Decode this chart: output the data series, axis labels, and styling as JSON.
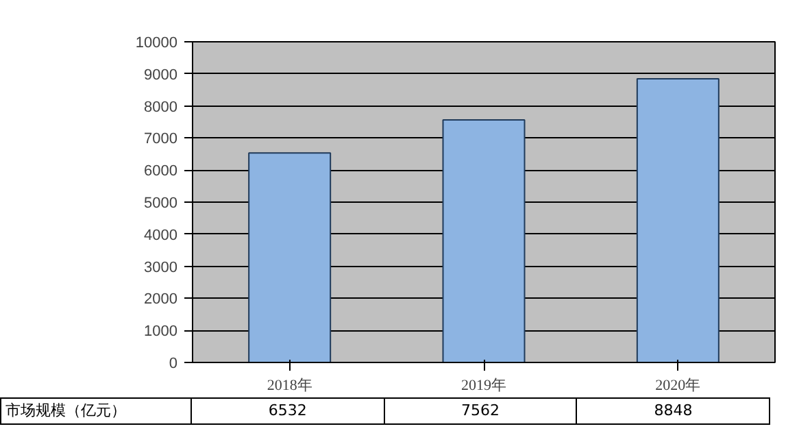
{
  "chart_data": {
    "type": "bar",
    "categories": [
      "2018年",
      "2019年",
      "2020年"
    ],
    "series": [
      {
        "name": "市场规模（亿元）",
        "color": "#8db4e2",
        "values": [
          6532,
          7562,
          8848
        ]
      }
    ],
    "ylim": [
      0,
      10000
    ],
    "yticks": [
      0,
      1000,
      2000,
      3000,
      4000,
      5000,
      6000,
      7000,
      8000,
      9000,
      10000
    ],
    "grid": "y",
    "data_labels": true
  }
}
